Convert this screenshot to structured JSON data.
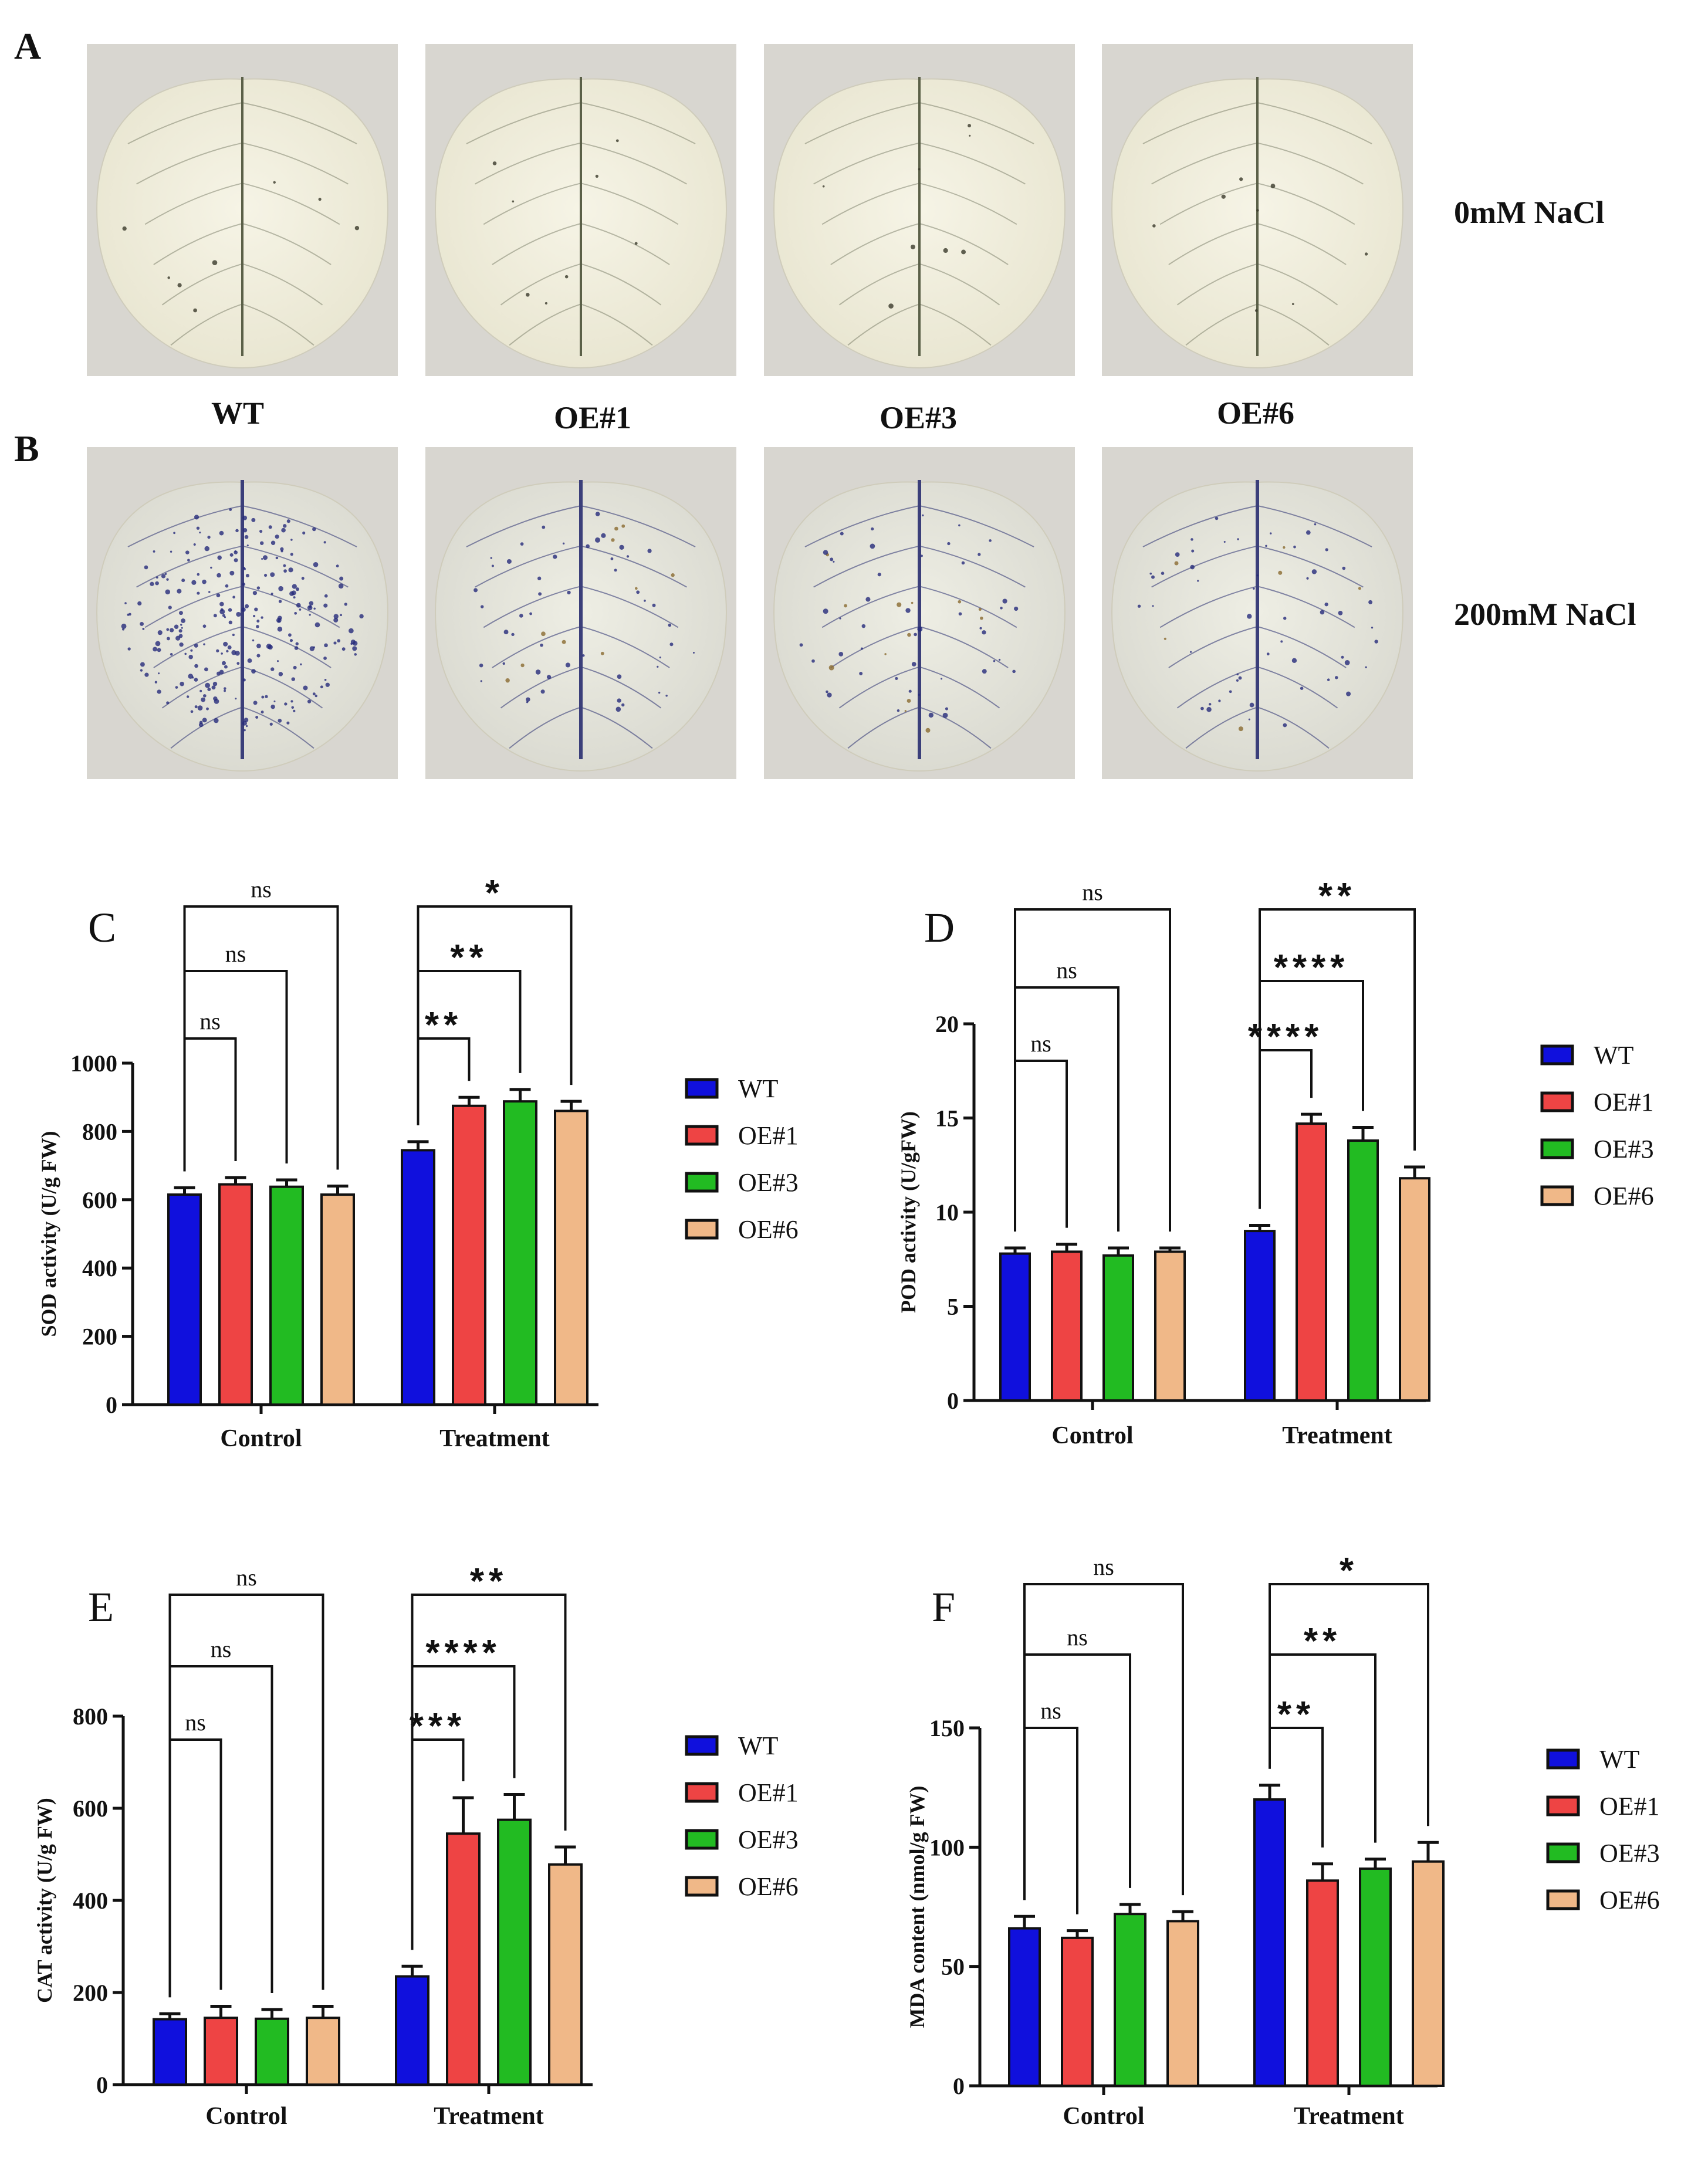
{
  "figure": {
    "panel_letters": [
      "A",
      "B",
      "C",
      "D",
      "E",
      "F"
    ],
    "photo_conditions": [
      "0mM NaCl",
      "200mM NaCl"
    ],
    "genotype_labels": [
      "WT",
      "OE#1",
      "OE#3",
      "OE#6"
    ]
  },
  "colors": {
    "WT": "#1010dd",
    "OE#1": "#ee4444",
    "OE#3": "#22bb22",
    "OE#6": "#f0b888"
  },
  "chart_data": [
    {
      "type": "bar",
      "panel": "C",
      "ylabel": "SOD activity (U/g FW)",
      "ylim": [
        0,
        1000
      ],
      "yticks": [
        "0",
        "200",
        "400",
        "600",
        "800",
        "1000"
      ],
      "categories": [
        "Control",
        "Treatment"
      ],
      "series": [
        {
          "name": "WT",
          "values": [
            615,
            745
          ],
          "errors": [
            20,
            25
          ]
        },
        {
          "name": "OE#1",
          "values": [
            645,
            875
          ],
          "errors": [
            20,
            25
          ]
        },
        {
          "name": "OE#3",
          "values": [
            638,
            888
          ],
          "errors": [
            20,
            35
          ]
        },
        {
          "name": "OE#6",
          "values": [
            615,
            860
          ],
          "errors": [
            25,
            28
          ]
        }
      ],
      "legend": [
        "WT",
        "OE#1",
        "OE#3",
        "OE#6"
      ],
      "significance": [
        {
          "group": "Control",
          "to": "OE#1",
          "label": "ns"
        },
        {
          "group": "Control",
          "to": "OE#3",
          "label": "ns"
        },
        {
          "group": "Control",
          "to": "OE#6",
          "label": "ns"
        },
        {
          "group": "Treatment",
          "to": "OE#1",
          "label": "**"
        },
        {
          "group": "Treatment",
          "to": "OE#3",
          "label": "**"
        },
        {
          "group": "Treatment",
          "to": "OE#6",
          "label": "*"
        }
      ]
    },
    {
      "type": "bar",
      "panel": "D",
      "ylabel": "POD activity (U/gFW)",
      "ylim": [
        0,
        20
      ],
      "yticks": [
        "0",
        "5",
        "10",
        "15",
        "20"
      ],
      "categories": [
        "Control",
        "Treatment"
      ],
      "series": [
        {
          "name": "WT",
          "values": [
            7.8,
            9.0
          ],
          "errors": [
            0.3,
            0.3
          ]
        },
        {
          "name": "OE#1",
          "values": [
            7.9,
            14.7
          ],
          "errors": [
            0.4,
            0.5
          ]
        },
        {
          "name": "OE#3",
          "values": [
            7.7,
            13.8
          ],
          "errors": [
            0.4,
            0.7
          ]
        },
        {
          "name": "OE#6",
          "values": [
            7.9,
            11.8
          ],
          "errors": [
            0.2,
            0.6
          ]
        }
      ],
      "legend": [
        "WT",
        "OE#1",
        "OE#3",
        "OE#6"
      ],
      "significance": [
        {
          "group": "Control",
          "to": "OE#1",
          "label": "ns"
        },
        {
          "group": "Control",
          "to": "OE#3",
          "label": "ns"
        },
        {
          "group": "Control",
          "to": "OE#6",
          "label": "ns"
        },
        {
          "group": "Treatment",
          "to": "OE#1",
          "label": "****"
        },
        {
          "group": "Treatment",
          "to": "OE#3",
          "label": "****"
        },
        {
          "group": "Treatment",
          "to": "OE#6",
          "label": "**"
        }
      ]
    },
    {
      "type": "bar",
      "panel": "E",
      "ylabel": "CAT activity (U/g FW)",
      "ylim": [
        0,
        800
      ],
      "yticks": [
        "0",
        "200",
        "400",
        "600",
        "800"
      ],
      "categories": [
        "Control",
        "Treatment"
      ],
      "series": [
        {
          "name": "WT",
          "values": [
            142,
            235
          ],
          "errors": [
            12,
            22
          ]
        },
        {
          "name": "OE#1",
          "values": [
            145,
            545
          ],
          "errors": [
            25,
            78
          ]
        },
        {
          "name": "OE#3",
          "values": [
            143,
            575
          ],
          "errors": [
            20,
            55
          ]
        },
        {
          "name": "OE#6",
          "values": [
            145,
            478
          ],
          "errors": [
            25,
            38
          ]
        }
      ],
      "legend": [
        "WT",
        "OE#1",
        "OE#3",
        "OE#6"
      ],
      "significance": [
        {
          "group": "Control",
          "to": "OE#1",
          "label": "ns"
        },
        {
          "group": "Control",
          "to": "OE#3",
          "label": "ns"
        },
        {
          "group": "Control",
          "to": "OE#6",
          "label": "ns"
        },
        {
          "group": "Treatment",
          "to": "OE#1",
          "label": "***"
        },
        {
          "group": "Treatment",
          "to": "OE#3",
          "label": "****"
        },
        {
          "group": "Treatment",
          "to": "OE#6",
          "label": "**"
        }
      ]
    },
    {
      "type": "bar",
      "panel": "F",
      "ylabel": "MDA content (nmol/g FW)",
      "ylim": [
        0,
        150
      ],
      "yticks": [
        "0",
        "50",
        "100",
        "150"
      ],
      "categories": [
        "Control",
        "Treatment"
      ],
      "series": [
        {
          "name": "WT",
          "values": [
            66,
            120
          ],
          "errors": [
            5,
            6
          ]
        },
        {
          "name": "OE#1",
          "values": [
            62,
            86
          ],
          "errors": [
            3,
            7
          ]
        },
        {
          "name": "OE#3",
          "values": [
            72,
            91
          ],
          "errors": [
            4,
            4
          ]
        },
        {
          "name": "OE#6",
          "values": [
            69,
            94
          ],
          "errors": [
            4,
            8
          ]
        }
      ],
      "legend": [
        "WT",
        "OE#1",
        "OE#3",
        "OE#6"
      ],
      "significance": [
        {
          "group": "Control",
          "to": "OE#1",
          "label": "ns"
        },
        {
          "group": "Control",
          "to": "OE#3",
          "label": "ns"
        },
        {
          "group": "Control",
          "to": "OE#6",
          "label": "ns"
        },
        {
          "group": "Treatment",
          "to": "OE#1",
          "label": "**"
        },
        {
          "group": "Treatment",
          "to": "OE#3",
          "label": "**"
        },
        {
          "group": "Treatment",
          "to": "OE#6",
          "label": "*"
        }
      ]
    }
  ]
}
